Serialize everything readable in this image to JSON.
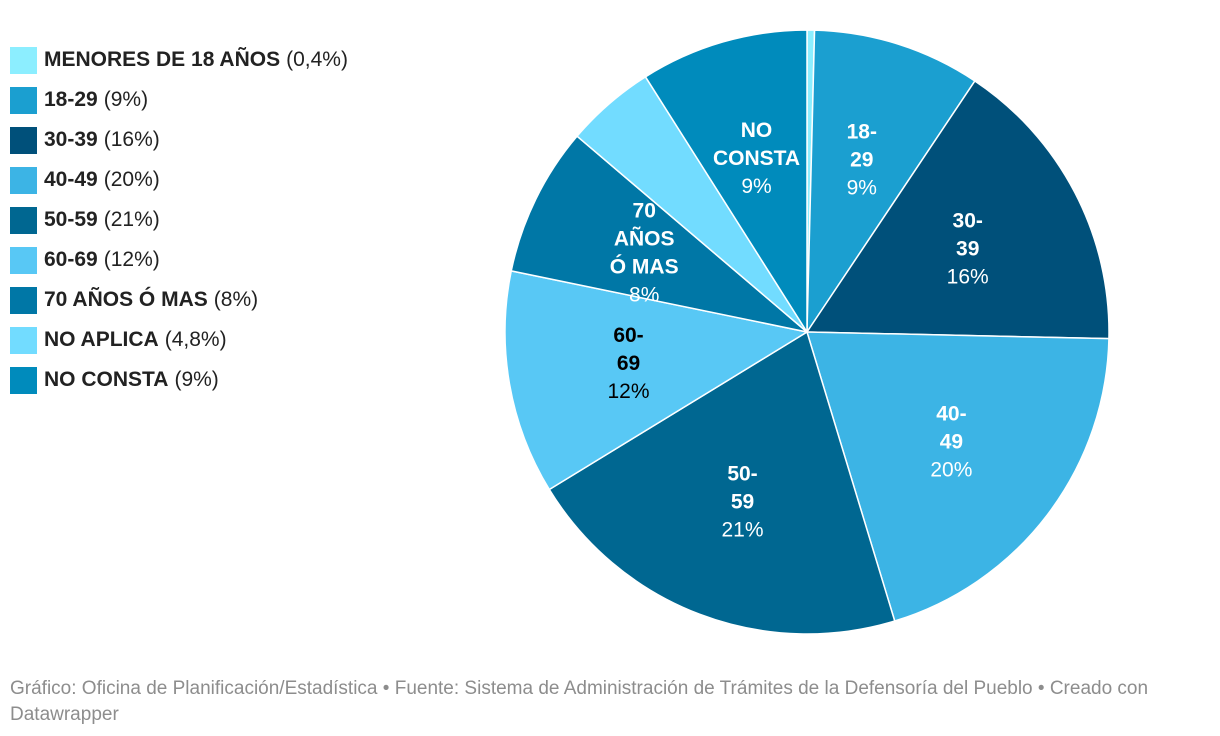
{
  "chart_data": {
    "type": "pie",
    "slices": [
      {
        "label": "MENORES DE 18 AÑOS",
        "pct_label": "0,4%",
        "value": 0.4,
        "color": "#8ceeff",
        "chart_label": [],
        "label_color": "#000000"
      },
      {
        "label": "18-29",
        "pct_label": "9%",
        "value": 9,
        "color": "#1b9fd0",
        "chart_label": [
          "18-",
          "29"
        ],
        "label_color": "#ffffff"
      },
      {
        "label": "30-39",
        "pct_label": "16%",
        "value": 16,
        "color": "#00507a",
        "chart_label": [
          "30-",
          "39"
        ],
        "label_color": "#ffffff"
      },
      {
        "label": "40-49",
        "pct_label": "20%",
        "value": 20,
        "color": "#3cb4e5",
        "chart_label": [
          "40-",
          "49"
        ],
        "label_color": "#ffffff"
      },
      {
        "label": "50-59",
        "pct_label": "21%",
        "value": 21,
        "color": "#006791",
        "chart_label": [
          "50-",
          "59"
        ],
        "label_color": "#ffffff"
      },
      {
        "label": "60-69",
        "pct_label": "12%",
        "value": 12,
        "color": "#58c8f5",
        "chart_label": [
          "60-",
          "69"
        ],
        "label_color": "#000000"
      },
      {
        "label": "70 AÑOS Ó MAS",
        "pct_label": "8%",
        "value": 8,
        "color": "#0077a6",
        "chart_label": [
          "70",
          "AÑOS",
          "Ó MAS"
        ],
        "label_color": "#ffffff"
      },
      {
        "label": "NO APLICA",
        "pct_label": "4,8%",
        "value": 4.8,
        "color": "#72dcff",
        "chart_label": [],
        "label_color": "#000000"
      },
      {
        "label": "NO CONSTA",
        "pct_label": "9%",
        "value": 9,
        "color": "#008bbc",
        "chart_label": [
          "NO",
          "CONSTA"
        ],
        "label_color": "#ffffff"
      }
    ],
    "legend_position": "top-left"
  },
  "footer": {
    "text": "Gráfico: Oficina de Planificación/Estadística • Fuente: Sistema de Administración de Trámites de la Defensoría del Pueblo • Creado con Datawrapper"
  }
}
